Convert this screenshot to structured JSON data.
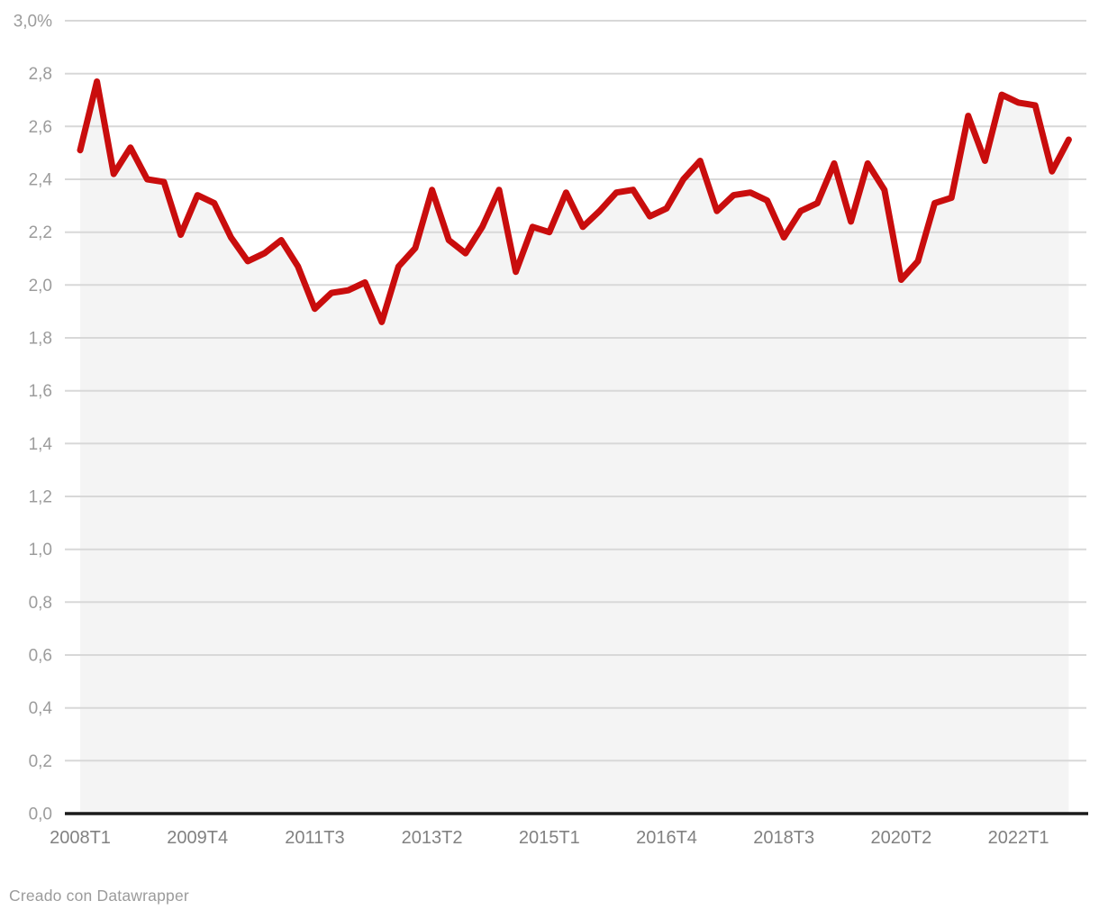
{
  "chart_data": {
    "type": "line",
    "unit": "%",
    "categories": [
      "2008T1",
      "2008T2",
      "2008T3",
      "2008T4",
      "2009T1",
      "2009T2",
      "2009T3",
      "2009T4",
      "2010T1",
      "2010T2",
      "2010T3",
      "2010T4",
      "2011T1",
      "2011T2",
      "2011T3",
      "2011T4",
      "2012T1",
      "2012T2",
      "2012T3",
      "2012T4",
      "2013T1",
      "2013T2",
      "2013T3",
      "2013T4",
      "2014T1",
      "2014T2",
      "2014T3",
      "2014T4",
      "2015T1",
      "2015T2",
      "2015T3",
      "2015T4",
      "2016T1",
      "2016T2",
      "2016T3",
      "2016T4",
      "2017T1",
      "2017T2",
      "2017T3",
      "2017T4",
      "2018T1",
      "2018T2",
      "2018T3",
      "2018T4",
      "2019T1",
      "2019T2",
      "2019T3",
      "2019T4",
      "2020T1",
      "2020T2",
      "2020T3",
      "2020T4",
      "2021T1",
      "2021T2",
      "2021T3",
      "2021T4",
      "2022T1",
      "2022T2",
      "2022T3",
      "2022T4"
    ],
    "values": [
      2.51,
      2.77,
      2.42,
      2.52,
      2.4,
      2.39,
      2.19,
      2.34,
      2.31,
      2.18,
      2.09,
      2.12,
      2.17,
      2.07,
      1.91,
      1.97,
      1.98,
      2.01,
      1.86,
      2.07,
      2.14,
      2.36,
      2.17,
      2.12,
      2.22,
      2.36,
      2.05,
      2.22,
      2.2,
      2.35,
      2.22,
      2.28,
      2.35,
      2.36,
      2.26,
      2.29,
      2.4,
      2.47,
      2.28,
      2.34,
      2.35,
      2.32,
      2.18,
      2.28,
      2.31,
      2.46,
      2.24,
      2.46,
      2.36,
      2.02,
      2.09,
      2.31,
      2.33,
      2.64,
      2.47,
      2.72,
      2.69,
      2.68,
      2.43,
      2.55
    ],
    "ylim": [
      0,
      3.0
    ],
    "grid": true,
    "legend": "none",
    "y_tick_values": [
      0.0,
      0.2,
      0.4,
      0.6,
      0.8,
      1.0,
      1.2,
      1.4,
      1.6,
      1.8,
      2.0,
      2.2,
      2.4,
      2.6,
      2.8,
      3.0
    ],
    "y_tick_labels": [
      "0,0",
      "0,2",
      "0,4",
      "0,6",
      "0,8",
      "1,0",
      "1,2",
      "1,4",
      "1,6",
      "1,8",
      "2,0",
      "2,2",
      "2,4",
      "2,6",
      "2,8",
      "3,0%"
    ],
    "x_tick_indices": [
      0,
      7,
      14,
      21,
      28,
      35,
      42,
      49,
      56
    ],
    "x_tick_labels": [
      "2008T1",
      "2009T4",
      "2011T3",
      "2013T2",
      "2015T1",
      "2016T4",
      "2018T3",
      "2020T2",
      "2022T1"
    ]
  },
  "colors": {
    "line": "#c90d0d",
    "area_fill": "#f4f4f4",
    "grid": "#d8d8d8",
    "axis": "#1b1b1b",
    "y_tick_label": "#9c9c9c",
    "x_tick_label": "#818181",
    "footer_text": "#9b9b9b"
  },
  "footer": {
    "text": "Creado con Datawrapper"
  }
}
